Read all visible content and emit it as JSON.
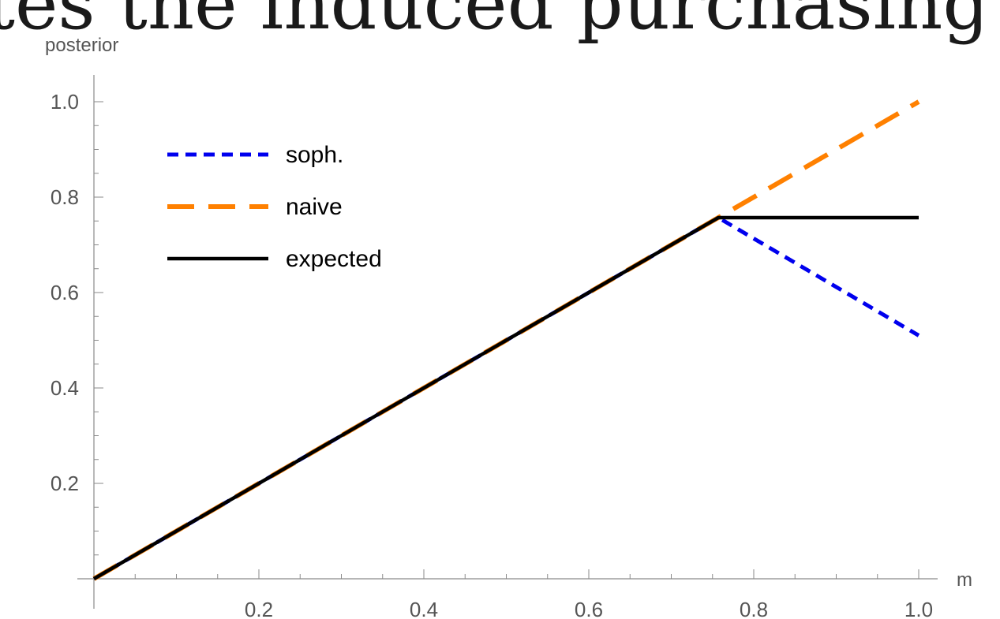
{
  "page": {
    "banner_text": "tes the induced purchasing prob"
  },
  "chart_data": {
    "type": "line",
    "xlabel": "m",
    "ylabel": "posterior",
    "xlim": [
      0,
      1.0
    ],
    "ylim": [
      0,
      1.0
    ],
    "x_ticks": [
      "0.2",
      "0.4",
      "0.6",
      "0.8",
      "1.0"
    ],
    "y_ticks": [
      "0.2",
      "0.4",
      "0.6",
      "0.8",
      "1.0"
    ],
    "grid": false,
    "legend_position": "top-left",
    "series": [
      {
        "name": "soph.",
        "style": "dotted",
        "color": "#0000ee",
        "x": [
          0,
          0.757,
          1.0
        ],
        "y": [
          0,
          0.757,
          0.51
        ]
      },
      {
        "name": "naive",
        "style": "dashed",
        "color": "#ff8000",
        "x": [
          0,
          0.757,
          1.0
        ],
        "y": [
          0,
          0.757,
          1.0
        ]
      },
      {
        "name": "expected",
        "style": "solid",
        "color": "#000000",
        "x": [
          0,
          0.757,
          1.0
        ],
        "y": [
          0,
          0.757,
          0.757
        ]
      }
    ]
  }
}
